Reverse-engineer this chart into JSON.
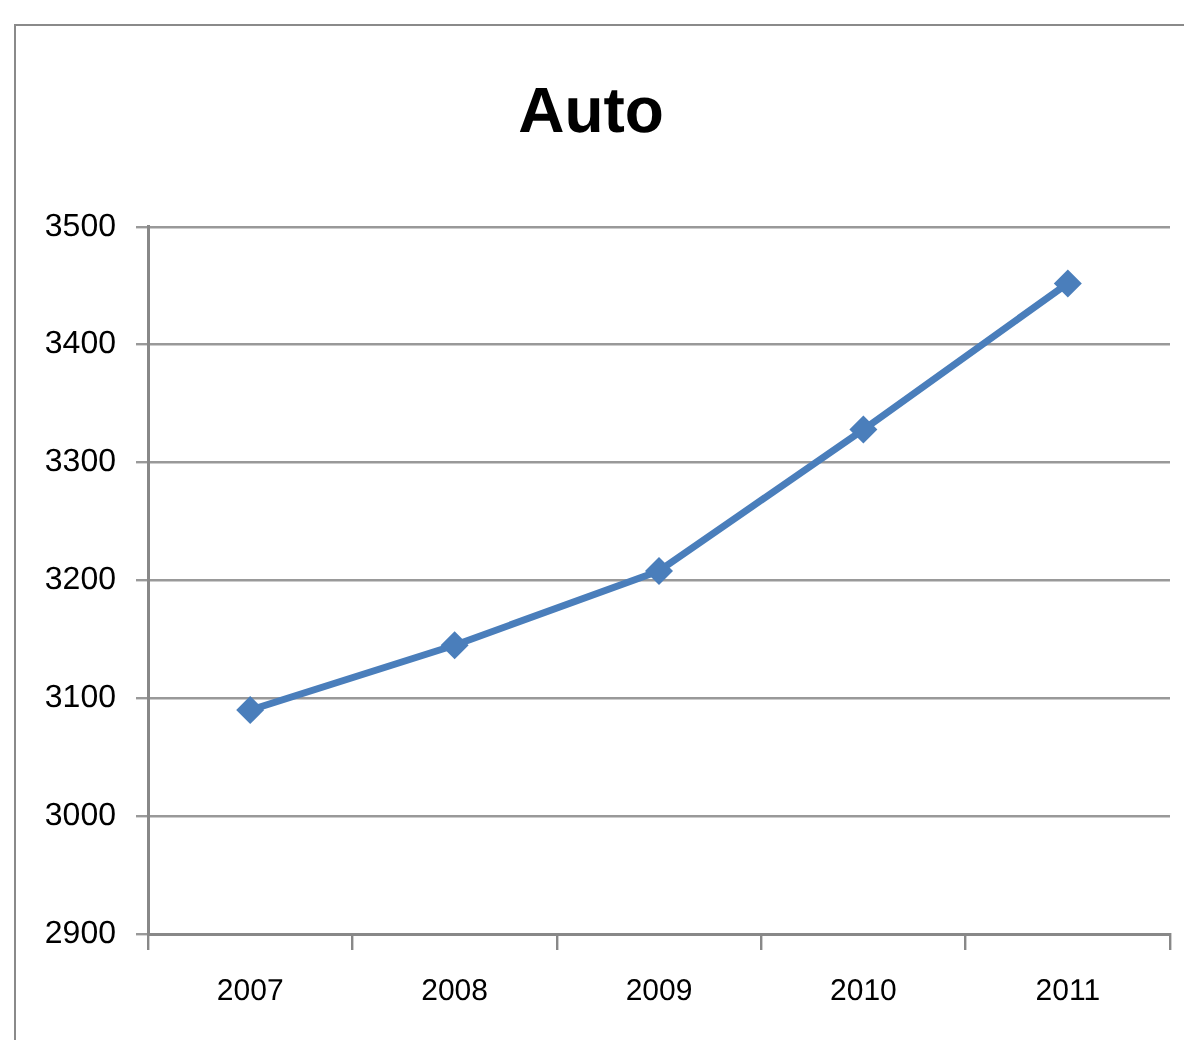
{
  "chart_data": {
    "type": "line",
    "title": "Auto",
    "categories": [
      "2007",
      "2008",
      "2009",
      "2010",
      "2011"
    ],
    "series": [
      {
        "color": "#4a7ebb",
        "values": [
          3090,
          3145,
          3208,
          3328,
          3452
        ]
      }
    ],
    "ylim": [
      2900,
      3500
    ],
    "yticks": [
      2900,
      3000,
      3100,
      3200,
      3300,
      3400,
      3500
    ],
    "grid": "y",
    "marker": "diamond",
    "line_style": "solid"
  }
}
